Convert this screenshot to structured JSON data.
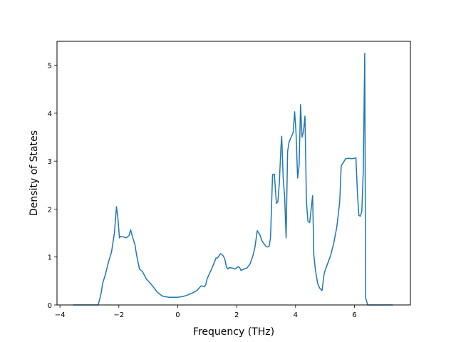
{
  "chart_data": {
    "type": "line",
    "title": "",
    "xlabel": "Frequency (THz)",
    "ylabel": "Density of States",
    "xlim": [
      -4.1,
      7.9
    ],
    "ylim": [
      0,
      5.5
    ],
    "xticks": [
      -4,
      -2,
      0,
      2,
      4,
      6
    ],
    "yticks": [
      0,
      1,
      2,
      3,
      4,
      5
    ],
    "grid": false,
    "legend": "none",
    "colors": {
      "line": "#1f77b4"
    },
    "series": [
      {
        "x": [
          -3.55,
          -2.7,
          -2.6,
          -2.55,
          -2.45,
          -2.35,
          -2.25,
          -2.15,
          -2.08,
          -2.03,
          -1.98,
          -1.93,
          -1.85,
          -1.75,
          -1.65,
          -1.6,
          -1.55,
          -1.5,
          -1.45,
          -1.4,
          -1.35,
          -1.3,
          -1.2,
          -1.1,
          -1.05,
          -1.0,
          -0.9,
          -0.8,
          -0.7,
          -0.6,
          -0.5,
          -0.4,
          -0.3,
          -0.2,
          0.0,
          0.2,
          0.3,
          0.5,
          0.65,
          0.75,
          0.8,
          0.9,
          0.95,
          1.0,
          1.05,
          1.15,
          1.25,
          1.3,
          1.35,
          1.45,
          1.5,
          1.55,
          1.6,
          1.65,
          1.7,
          1.75,
          1.85,
          1.95,
          2.05,
          2.1,
          2.15,
          2.25,
          2.35,
          2.45,
          2.55,
          2.62,
          2.7,
          2.8,
          2.85,
          2.9,
          3.0,
          3.05,
          3.1,
          3.15,
          3.22,
          3.28,
          3.35,
          3.4,
          3.45,
          3.5,
          3.53,
          3.58,
          3.63,
          3.68,
          3.73,
          3.78,
          3.85,
          3.92,
          3.97,
          4.02,
          4.07,
          4.12,
          4.17,
          4.22,
          4.27,
          4.32,
          4.37,
          4.42,
          4.48,
          4.53,
          4.58,
          4.62,
          4.67,
          4.75,
          4.82,
          4.9,
          4.97,
          5.02,
          5.1,
          5.2,
          5.3,
          5.4,
          5.5,
          5.55,
          5.6,
          5.7,
          5.8,
          5.9,
          6.0,
          6.05,
          6.1,
          6.15,
          6.2,
          6.25,
          6.3,
          6.35,
          6.38,
          6.45,
          7.3
        ],
        "y": [
          0.0,
          0.0,
          0.25,
          0.45,
          0.65,
          0.9,
          1.1,
          1.5,
          2.05,
          1.8,
          1.4,
          1.43,
          1.42,
          1.4,
          1.45,
          1.57,
          1.45,
          1.35,
          1.25,
          1.05,
          0.9,
          0.75,
          0.7,
          0.58,
          0.53,
          0.5,
          0.43,
          0.35,
          0.27,
          0.22,
          0.18,
          0.17,
          0.16,
          0.16,
          0.16,
          0.18,
          0.2,
          0.25,
          0.3,
          0.37,
          0.4,
          0.38,
          0.42,
          0.55,
          0.62,
          0.75,
          0.9,
          0.98,
          0.98,
          1.07,
          1.05,
          1.02,
          0.95,
          0.8,
          0.75,
          0.78,
          0.77,
          0.75,
          0.8,
          0.78,
          0.72,
          0.75,
          0.77,
          0.85,
          1.02,
          1.2,
          1.55,
          1.45,
          1.35,
          1.3,
          1.22,
          1.21,
          1.22,
          1.4,
          2.72,
          2.73,
          2.12,
          2.15,
          2.55,
          3.25,
          3.52,
          2.65,
          2.25,
          1.4,
          3.2,
          3.4,
          3.5,
          3.6,
          4.03,
          3.55,
          2.65,
          2.9,
          4.18,
          3.5,
          3.62,
          3.94,
          2.15,
          1.75,
          1.72,
          2.0,
          2.28,
          1.05,
          0.75,
          0.45,
          0.35,
          0.3,
          0.65,
          0.75,
          0.88,
          1.05,
          1.3,
          1.62,
          2.15,
          2.9,
          2.95,
          3.05,
          3.06,
          3.05,
          3.06,
          3.07,
          2.35,
          1.87,
          1.85,
          1.95,
          2.8,
          5.25,
          0.15,
          0.0,
          0.0
        ]
      }
    ]
  }
}
